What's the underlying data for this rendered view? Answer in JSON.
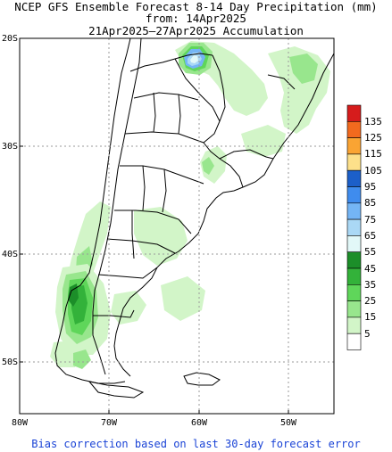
{
  "title": {
    "line1": "NCEP GFS Ensemble Forecast 8-14 Day Precipitation (mm)",
    "line2": "from: 14Apr2025",
    "line3": "21Apr2025–27Apr2025 Accumulation"
  },
  "axes": {
    "lat_labels": [
      "20S",
      "30S",
      "40S",
      "50S"
    ],
    "lon_labels": [
      "80W",
      "70W",
      "60W",
      "50W"
    ]
  },
  "legend": {
    "levels": [
      {
        "label": "135",
        "color": "#d61c1c"
      },
      {
        "label": "125",
        "color": "#f26a1e"
      },
      {
        "label": "115",
        "color": "#faa433"
      },
      {
        "label": "105",
        "color": "#fde08a"
      },
      {
        "label": "95",
        "color": "#1c5fc9"
      },
      {
        "label": "85",
        "color": "#3f8cee"
      },
      {
        "label": "75",
        "color": "#74b5f5"
      },
      {
        "label": "65",
        "color": "#aad8f5"
      },
      {
        "label": "55",
        "color": "#e2f8f8"
      },
      {
        "label": "45",
        "color": "#1c8e29"
      },
      {
        "label": "35",
        "color": "#33b23a"
      },
      {
        "label": "25",
        "color": "#5fd65a"
      },
      {
        "label": "15",
        "color": "#98e68d"
      },
      {
        "label": "5",
        "color": "#d2f5c8"
      },
      {
        "label": "",
        "color": "#ffffff"
      }
    ]
  },
  "footer": "Bias correction based on last 30-day forecast error"
}
